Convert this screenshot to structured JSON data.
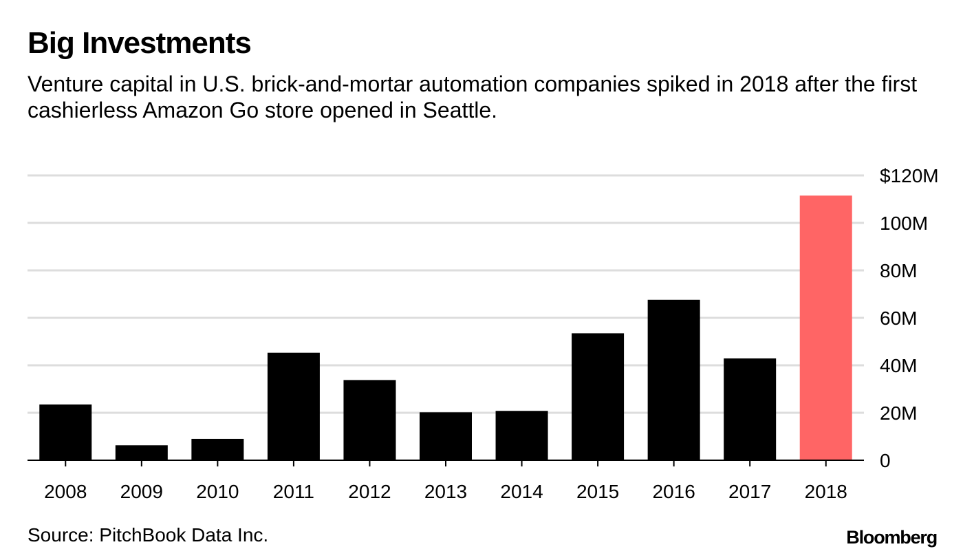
{
  "header": {
    "title": "Big Investments",
    "subtitle": "Venture capital in U.S. brick-and-mortar automation companies spiked in 2018 after the first cashierless Amazon Go store opened in Seattle."
  },
  "footer": {
    "source": "Source: PitchBook Data Inc.",
    "brand": "Bloomberg"
  },
  "chart_data": {
    "type": "bar",
    "title": "Big Investments",
    "categories": [
      "2008",
      "2009",
      "2010",
      "2011",
      "2012",
      "2013",
      "2014",
      "2015",
      "2016",
      "2017",
      "2018"
    ],
    "values": [
      23.5,
      6.3,
      9.0,
      45.3,
      33.8,
      20.2,
      20.8,
      53.5,
      67.6,
      42.9,
      111.5
    ],
    "unit": "$M",
    "ylim": [
      0,
      120
    ],
    "y_ticks": [
      0,
      20,
      40,
      60,
      80,
      100,
      120
    ],
    "y_tick_labels": [
      "0",
      "20M",
      "40M",
      "60M",
      "80M",
      "100M",
      "$120M"
    ],
    "y_axis_side": "right",
    "grid": true,
    "colors": {
      "default": "#000000",
      "highlight": "#ff6565",
      "grid": "#dddddd"
    },
    "highlight_category": "2018"
  }
}
